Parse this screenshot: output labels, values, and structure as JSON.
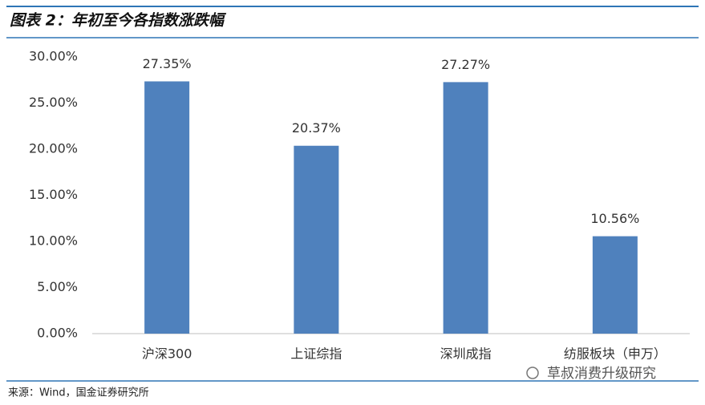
{
  "chart_data": {
    "type": "bar",
    "title": "图表 2：年初至今各指数涨跌幅",
    "categories": [
      "沪深300",
      "上证综指",
      "深圳成指",
      "纺服板块（申万）"
    ],
    "values": [
      27.35,
      20.37,
      27.27,
      10.56
    ],
    "value_labels": [
      "27.35%",
      "20.37%",
      "27.27%",
      "10.56%"
    ],
    "color": "#4f81bd",
    "ylim": [
      0,
      30
    ],
    "yticks": [
      {
        "value": 0,
        "label": "0.00%"
      },
      {
        "value": 5,
        "label": "5.00%"
      },
      {
        "value": 10,
        "label": "10.00%"
      },
      {
        "value": 15,
        "label": "15.00%"
      },
      {
        "value": 20,
        "label": "20.00%"
      },
      {
        "value": 25,
        "label": "25.00%"
      },
      {
        "value": 30,
        "label": "30.00%"
      }
    ],
    "grid": false,
    "source": "来源：Wind，国金证券研究所",
    "watermark": "草叔消费升级研究"
  }
}
